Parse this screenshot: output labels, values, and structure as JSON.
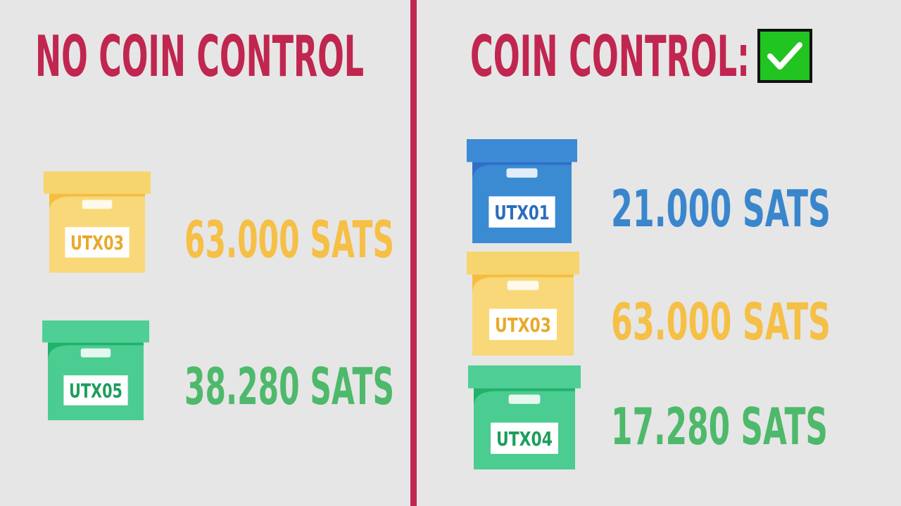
{
  "left": {
    "title": "NO COIN CONTROL",
    "items": [
      {
        "label": "UTX03",
        "amount": "63.000 SATS"
      },
      {
        "label": "UTX05",
        "amount": "38.280 SATS"
      }
    ]
  },
  "right": {
    "title": "COIN CONTROL:",
    "items": [
      {
        "label": "UTX01",
        "amount": "21.000 SATS"
      },
      {
        "label": "UTX03",
        "amount": "63.000 SATS"
      },
      {
        "label": "UTX04",
        "amount": "17.280 SATS"
      }
    ]
  }
}
